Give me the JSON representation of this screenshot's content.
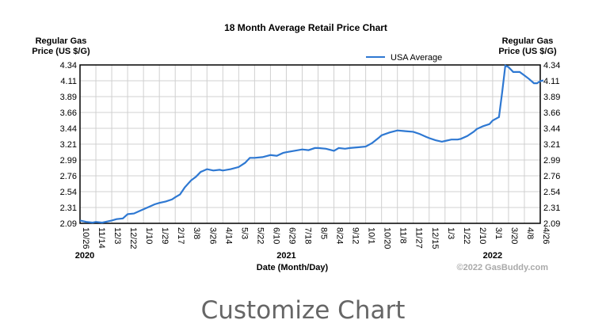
{
  "chart_data": {
    "type": "line",
    "title": "18 Month Average Retail Price Chart",
    "ylabel_left": [
      "Regular Gas",
      "Price (US $/G)"
    ],
    "ylabel_right": [
      "Regular Gas",
      "Price (US $/G)"
    ],
    "xlabel": "Date (Month/Day)",
    "ylim": [
      2.09,
      4.34
    ],
    "yticks": [
      "4.34",
      "4.11",
      "3.89",
      "3.66",
      "3.44",
      "3.21",
      "2.99",
      "2.76",
      "2.54",
      "2.31",
      "2.09"
    ],
    "xticks": [
      "10/26",
      "11/14",
      "12/3",
      "12/22",
      "1/10",
      "1/29",
      "2/17",
      "3/8",
      "3/26",
      "4/14",
      "5/3",
      "5/22",
      "6/10",
      "6/29",
      "7/18",
      "8/5",
      "8/24",
      "9/12",
      "10/1",
      "10/20",
      "11/8",
      "11/27",
      "12/15",
      "1/3",
      "1/22",
      "2/10",
      "3/1",
      "3/20",
      "4/8",
      "4/26"
    ],
    "years": [
      {
        "label": "2020",
        "tick": 0.3
      },
      {
        "label": "2021",
        "tick": 13.0
      },
      {
        "label": "2022",
        "tick": 26.0
      }
    ],
    "legend": {
      "entries": [
        "USA Average"
      ],
      "placement": "top-right"
    },
    "grid": true,
    "series": [
      {
        "name": "USA Average",
        "color": "#2e78d2",
        "points_tick_index_value": [
          [
            0,
            2.13
          ],
          [
            0.4,
            2.11
          ],
          [
            0.8,
            2.1
          ],
          [
            1,
            2.11
          ],
          [
            1.4,
            2.1
          ],
          [
            1.8,
            2.12
          ],
          [
            2,
            2.13
          ],
          [
            2.3,
            2.15
          ],
          [
            2.7,
            2.16
          ],
          [
            3,
            2.22
          ],
          [
            3.4,
            2.23
          ],
          [
            3.8,
            2.27
          ],
          [
            4,
            2.29
          ],
          [
            4.3,
            2.32
          ],
          [
            4.7,
            2.36
          ],
          [
            5,
            2.38
          ],
          [
            5.4,
            2.4
          ],
          [
            5.8,
            2.43
          ],
          [
            6,
            2.46
          ],
          [
            6.3,
            2.5
          ],
          [
            6.6,
            2.6
          ],
          [
            7,
            2.7
          ],
          [
            7.3,
            2.75
          ],
          [
            7.6,
            2.82
          ],
          [
            8,
            2.86
          ],
          [
            8.4,
            2.84
          ],
          [
            8.8,
            2.85
          ],
          [
            9,
            2.84
          ],
          [
            9.5,
            2.86
          ],
          [
            10,
            2.89
          ],
          [
            10.4,
            2.95
          ],
          [
            10.7,
            3.02
          ],
          [
            11,
            3.02
          ],
          [
            11.5,
            3.03
          ],
          [
            12,
            3.06
          ],
          [
            12.4,
            3.05
          ],
          [
            12.8,
            3.09
          ],
          [
            13,
            3.1
          ],
          [
            13.5,
            3.12
          ],
          [
            14,
            3.14
          ],
          [
            14.4,
            3.13
          ],
          [
            14.8,
            3.16
          ],
          [
            15,
            3.16
          ],
          [
            15.5,
            3.15
          ],
          [
            16,
            3.12
          ],
          [
            16.3,
            3.16
          ],
          [
            16.7,
            3.15
          ],
          [
            17,
            3.16
          ],
          [
            17.5,
            3.17
          ],
          [
            18,
            3.18
          ],
          [
            18.4,
            3.23
          ],
          [
            18.8,
            3.3
          ],
          [
            19,
            3.34
          ],
          [
            19.5,
            3.38
          ],
          [
            20,
            3.41
          ],
          [
            20.5,
            3.4
          ],
          [
            21,
            3.39
          ],
          [
            21.4,
            3.36
          ],
          [
            21.8,
            3.32
          ],
          [
            22,
            3.3
          ],
          [
            22.4,
            3.27
          ],
          [
            22.8,
            3.25
          ],
          [
            23,
            3.26
          ],
          [
            23.4,
            3.28
          ],
          [
            23.8,
            3.28
          ],
          [
            24,
            3.29
          ],
          [
            24.4,
            3.33
          ],
          [
            24.8,
            3.39
          ],
          [
            25,
            3.43
          ],
          [
            25.4,
            3.47
          ],
          [
            25.8,
            3.5
          ],
          [
            26,
            3.55
          ],
          [
            26.4,
            3.6
          ],
          [
            26.6,
            3.95
          ],
          [
            26.8,
            4.33
          ],
          [
            27,
            4.31
          ],
          [
            27.3,
            4.24
          ],
          [
            27.7,
            4.24
          ],
          [
            28,
            4.19
          ],
          [
            28.3,
            4.14
          ],
          [
            28.6,
            4.08
          ],
          [
            28.8,
            4.08
          ],
          [
            29,
            4.11
          ],
          [
            29.2,
            4.12
          ]
        ]
      }
    ],
    "watermark": "©2022 GasBuddy.com"
  },
  "customize_label": "Customize Chart"
}
